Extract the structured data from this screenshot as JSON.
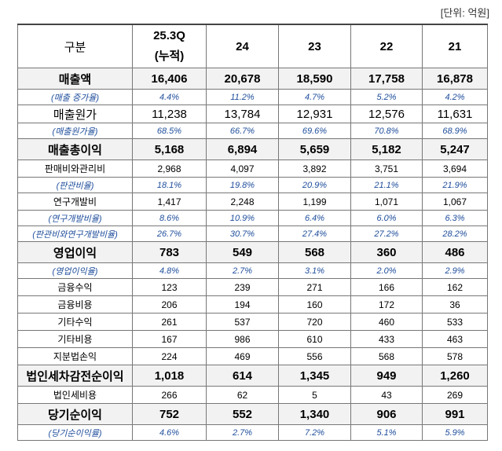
{
  "unit": "[단위: 억원]",
  "table": {
    "header": [
      "구분",
      "25.3Q",
      "24",
      "23",
      "22",
      "21"
    ],
    "header_note": "(누적)",
    "rows": [
      [
        "매출액",
        "16,406",
        "20,678",
        "18,590",
        "17,758",
        "16,878"
      ],
      [
        "(매출 증가율)",
        "4.4%",
        "11.2%",
        "4.7%",
        "5.2%",
        "4.2%"
      ],
      [
        "매출원가",
        "11,238",
        "13,784",
        "12,931",
        "12,576",
        "11,631"
      ],
      [
        "(매출원가율)",
        "68.5%",
        "66.7%",
        "69.6%",
        "70.8%",
        "68.9%"
      ],
      [
        "매출총이익",
        "5,168",
        "6,894",
        "5,659",
        "5,182",
        "5,247"
      ],
      [
        "판매비와관리비",
        "2,968",
        "4,097",
        "3,892",
        "3,751",
        "3,694"
      ],
      [
        "(판관비율)",
        "18.1%",
        "19.8%",
        "20.9%",
        "21.1%",
        "21.9%"
      ],
      [
        "연구개발비",
        "1,417",
        "2,248",
        "1,199",
        "1,071",
        "1,067"
      ],
      [
        "(연구개발비율)",
        "8.6%",
        "10.9%",
        "6.4%",
        "6.0%",
        "6.3%"
      ],
      [
        "(판관비와연구개발비율)",
        "26.7%",
        "30.7%",
        "27.4%",
        "27.2%",
        "28.2%"
      ],
      [
        "영업이익",
        "783",
        "549",
        "568",
        "360",
        "486"
      ],
      [
        "(영업이익율)",
        "4.8%",
        "2.7%",
        "3.1%",
        "2.0%",
        "2.9%"
      ],
      [
        "금융수익",
        "123",
        "239",
        "271",
        "166",
        "162"
      ],
      [
        "금융비용",
        "206",
        "194",
        "160",
        "172",
        "36"
      ],
      [
        "기타수익",
        "261",
        "537",
        "720",
        "460",
        "533"
      ],
      [
        "기타비용",
        "167",
        "986",
        "610",
        "433",
        "463"
      ],
      [
        "지분법손익",
        "224",
        "469",
        "556",
        "568",
        "578"
      ],
      [
        "법인세차감전순이익",
        "1,018",
        "614",
        "1,345",
        "949",
        "1,260"
      ],
      [
        "법인세비용",
        "266",
        "62",
        "5",
        "43",
        "269"
      ],
      [
        "당기순이익",
        "752",
        "552",
        "1,340",
        "906",
        "991"
      ],
      [
        "(당기순이익률)",
        "4.6%",
        "2.7%",
        "7.2%",
        "5.1%",
        "5.9%"
      ]
    ]
  }
}
